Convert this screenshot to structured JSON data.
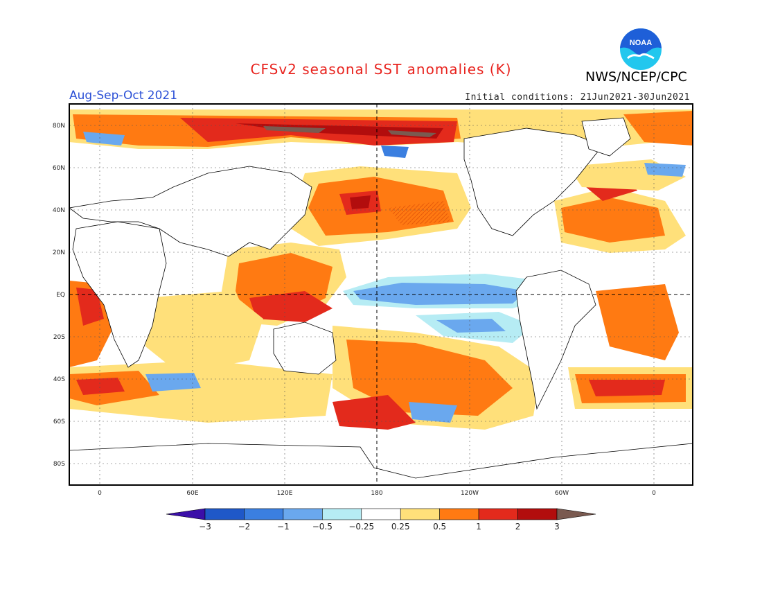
{
  "title": "CFSv2 seasonal SST anomalies (K)",
  "organization": "NWS/NCEP/CPC",
  "logo_text": "NOAA",
  "season": "Aug-Sep-Oct 2021",
  "initial_conditions": "Initial conditions: 21Jun2021-30Jun2021",
  "lat_labels": [
    "80N",
    "60N",
    "40N",
    "20N",
    "EQ",
    "20S",
    "40S",
    "60S",
    "80S"
  ],
  "lon_labels": [
    "0",
    "60E",
    "120E",
    "180",
    "120W",
    "60W",
    "0"
  ],
  "colorbar": {
    "labels": [
      "-3",
      "-2",
      "-1",
      "-0.5",
      "-0.25",
      "0.25",
      "0.5",
      "1",
      "2",
      "3"
    ],
    "colors": [
      "#3b0fa8",
      "#1f58c8",
      "#3b7fe0",
      "#6aa8ee",
      "#b6ecf4",
      "#ffffff",
      "#ffe07a",
      "#ff7a12",
      "#e32a1c",
      "#b20d0d",
      "#7a5a50"
    ]
  },
  "colors": {
    "title": "#e8231e",
    "season": "#2a4fd6",
    "noaa_blue": "#1e6fe0",
    "noaa_cyan": "#22c7ee"
  }
}
